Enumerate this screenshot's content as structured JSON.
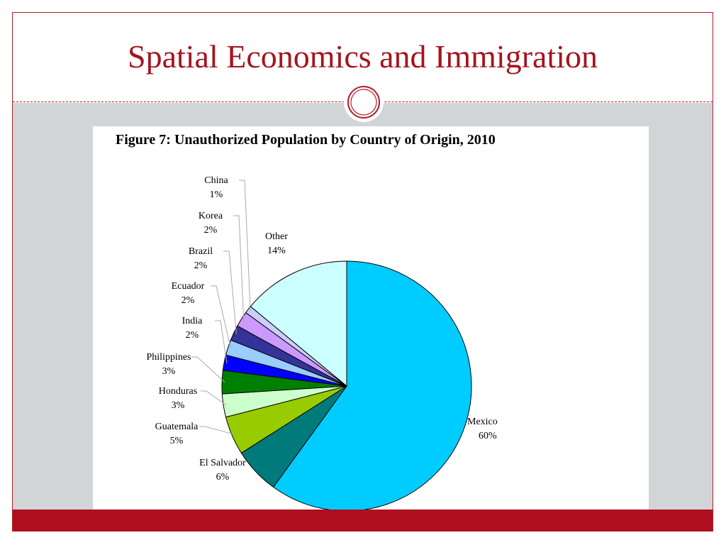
{
  "slide": {
    "title": "Spatial Economics and Immigration"
  },
  "colors": {
    "title": "#a5141f",
    "accent_bar": "#b00f1f",
    "content_background": "#d2d5d8"
  },
  "chart_data": {
    "type": "pie",
    "title": "Figure 7: Unauthorized Population by Country of Origin, 2010",
    "unit": "%",
    "slices": [
      {
        "label": "Mexico",
        "value": 60,
        "value_label": "60%",
        "color": "#00ccff"
      },
      {
        "label": "El Salvador",
        "value": 6,
        "value_label": "6%",
        "color": "#007a7a"
      },
      {
        "label": "Guatemala",
        "value": 5,
        "value_label": "5%",
        "color": "#99cc00"
      },
      {
        "label": "Honduras",
        "value": 3,
        "value_label": "3%",
        "color": "#ccffcc"
      },
      {
        "label": "Philippines",
        "value": 3,
        "value_label": "3%",
        "color": "#008000"
      },
      {
        "label": "India",
        "value": 2,
        "value_label": "2%",
        "color": "#0000ff"
      },
      {
        "label": "Ecuador",
        "value": 2,
        "value_label": "2%",
        "color": "#99ccff"
      },
      {
        "label": "Brazil",
        "value": 2,
        "value_label": "2%",
        "color": "#333399"
      },
      {
        "label": "Korea",
        "value": 2,
        "value_label": "2%",
        "color": "#cc99ff"
      },
      {
        "label": "China",
        "value": 1,
        "value_label": "1%",
        "color": "#ccccff"
      },
      {
        "label": "Other",
        "value": 14,
        "value_label": "14%",
        "color": "#ccffff"
      }
    ]
  }
}
